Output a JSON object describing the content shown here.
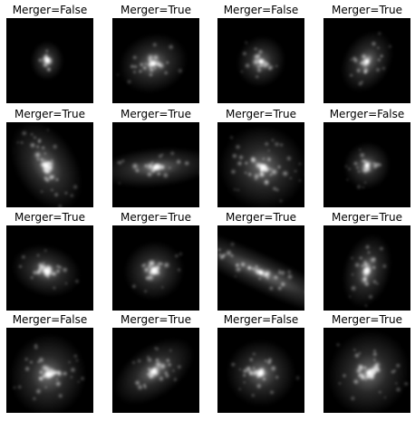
{
  "figure": {
    "background_color": "#ffffff",
    "image_background_color": "#000000",
    "panels": [
      {
        "title": "Merger=False"
      },
      {
        "title": "Merger=True"
      },
      {
        "title": "Merger=False"
      },
      {
        "title": "Merger=True"
      },
      {
        "title": "Merger=True"
      },
      {
        "title": "Merger=True"
      },
      {
        "title": "Merger=True"
      },
      {
        "title": "Merger=False"
      },
      {
        "title": "Merger=True"
      },
      {
        "title": "Merger=True"
      },
      {
        "title": "Merger=True"
      },
      {
        "title": "Merger=True"
      },
      {
        "title": "Merger=False"
      },
      {
        "title": "Merger=True"
      },
      {
        "title": "Merger=False"
      },
      {
        "title": "Merger=True"
      }
    ]
  }
}
